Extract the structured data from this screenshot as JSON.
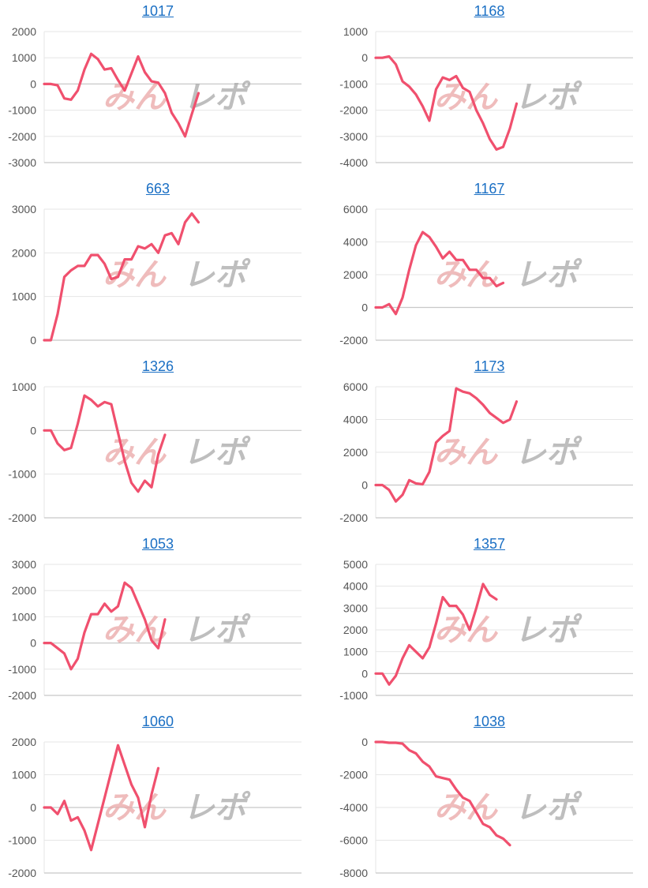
{
  "colors": {
    "line": "#f0506e",
    "grid": "#e6e6e6",
    "axis": "#c8c8c8",
    "title": "#1a6fc4",
    "watermark_left": "#e9a6a6",
    "watermark_right": "#a8a8a8"
  },
  "watermark": {
    "left": "みん",
    "right": "レポ"
  },
  "chart_data": [
    {
      "type": "line",
      "title": "1017",
      "yticks": [
        2000,
        1000,
        0,
        -1000,
        -2000,
        -3000
      ],
      "ylim": [
        -3000,
        2000
      ],
      "values": [
        0,
        0,
        -50,
        -550,
        -600,
        -250,
        550,
        1150,
        950,
        550,
        600,
        150,
        -250,
        400,
        1050,
        450,
        100,
        50,
        -350,
        -1100,
        -1500,
        -2000,
        -1150,
        -350
      ]
    },
    {
      "type": "line",
      "title": "1168",
      "yticks": [
        1000,
        0,
        -1000,
        -2000,
        -3000,
        -4000
      ],
      "ylim": [
        -4000,
        1000
      ],
      "values": [
        0,
        0,
        50,
        -250,
        -900,
        -1100,
        -1400,
        -1850,
        -2400,
        -1200,
        -750,
        -850,
        -700,
        -1150,
        -1300,
        -2000,
        -2500,
        -3100,
        -3500,
        -3400,
        -2700,
        -1750
      ]
    },
    {
      "type": "line",
      "title": "663",
      "yticks": [
        3000,
        2000,
        1000,
        0
      ],
      "ylim": [
        0,
        3000
      ],
      "values": [
        0,
        0,
        600,
        1450,
        1600,
        1700,
        1700,
        1950,
        1950,
        1750,
        1400,
        1450,
        1850,
        1850,
        2150,
        2100,
        2200,
        2000,
        2400,
        2450,
        2200,
        2700,
        2900,
        2700
      ]
    },
    {
      "type": "line",
      "title": "1167",
      "yticks": [
        6000,
        4000,
        2000,
        0,
        -2000
      ],
      "ylim": [
        -2000,
        6000
      ],
      "values": [
        0,
        0,
        200,
        -400,
        600,
        2300,
        3800,
        4600,
        4300,
        3700,
        3000,
        3400,
        2900,
        2900,
        2300,
        2300,
        1800,
        1800,
        1300,
        1500
      ]
    },
    {
      "type": "line",
      "title": "1326",
      "yticks": [
        1000,
        0,
        -1000,
        -2000
      ],
      "ylim": [
        -2000,
        1000
      ],
      "values": [
        0,
        0,
        -300,
        -450,
        -400,
        150,
        800,
        700,
        550,
        650,
        600,
        -50,
        -700,
        -1200,
        -1400,
        -1150,
        -1300,
        -550,
        -100
      ]
    },
    {
      "type": "line",
      "title": "1173",
      "yticks": [
        6000,
        4000,
        2000,
        0,
        -2000
      ],
      "ylim": [
        -2000,
        6000
      ],
      "values": [
        0,
        0,
        -300,
        -1000,
        -600,
        300,
        100,
        50,
        800,
        2600,
        3000,
        3300,
        5900,
        5700,
        5600,
        5300,
        4900,
        4400,
        4100,
        3800,
        4000,
        5100
      ]
    },
    {
      "type": "line",
      "title": "1053",
      "yticks": [
        3000,
        2000,
        1000,
        0,
        -1000,
        -2000
      ],
      "ylim": [
        -2000,
        3000
      ],
      "values": [
        0,
        0,
        -200,
        -400,
        -1000,
        -600,
        400,
        1100,
        1100,
        1500,
        1200,
        1400,
        2300,
        2100,
        1500,
        900,
        100,
        -200,
        900
      ]
    },
    {
      "type": "line",
      "title": "1357",
      "yticks": [
        5000,
        4000,
        3000,
        2000,
        1000,
        0,
        -1000
      ],
      "ylim": [
        -1000,
        5000
      ],
      "values": [
        0,
        0,
        -500,
        -100,
        700,
        1300,
        1000,
        700,
        1200,
        2300,
        3500,
        3100,
        3100,
        2700,
        2000,
        3000,
        4100,
        3600,
        3400
      ]
    },
    {
      "type": "line",
      "title": "1060",
      "yticks": [
        2000,
        1000,
        0,
        -1000,
        -2000
      ],
      "ylim": [
        -2000,
        2000
      ],
      "values": [
        0,
        0,
        -200,
        200,
        -400,
        -300,
        -700,
        -1300,
        -500,
        300,
        1100,
        1900,
        1300,
        700,
        300,
        -600,
        400,
        1200
      ]
    },
    {
      "type": "line",
      "title": "1038",
      "yticks": [
        0,
        -2000,
        -4000,
        -6000,
        -8000
      ],
      "ylim": [
        -8000,
        0
      ],
      "values": [
        0,
        0,
        -50,
        -50,
        -100,
        -500,
        -700,
        -1200,
        -1500,
        -2100,
        -2200,
        -2300,
        -2900,
        -3400,
        -3600,
        -4300,
        -5000,
        -5200,
        -5700,
        -5900,
        -6300
      ]
    }
  ]
}
